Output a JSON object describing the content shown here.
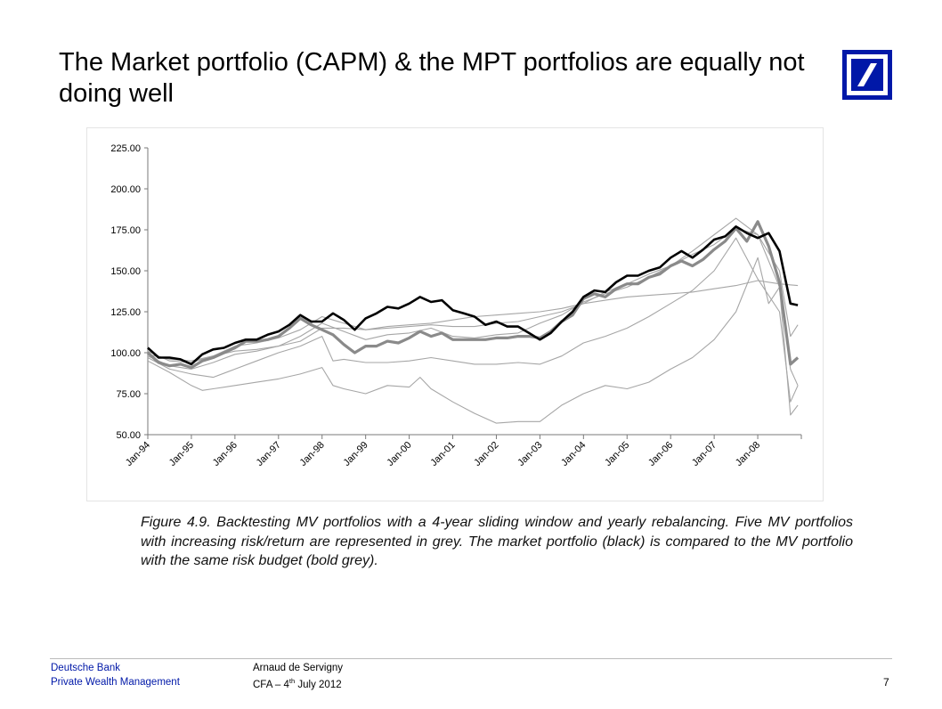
{
  "slide": {
    "title": "The Market portfolio (CAPM) & the MPT portfolios are equally not doing well",
    "caption": "Figure 4.9. Backtesting MV portfolios with a 4-year sliding window and yearly rebalancing. Five MV portfolios with increasing risk/return are represented in grey. The market portfolio (black) is compared to the MV portfolio with the same risk budget (bold grey).",
    "logo_icon": "deutsche-bank-slash-logo",
    "brand_color": "#0018a8"
  },
  "footer": {
    "bank": "Deutsche Bank",
    "division": "Private Wealth Management",
    "author": "Arnaud de Servigny",
    "event_prefix": "CFA – 4",
    "event_sup": "th",
    "event_suffix": " July 2012",
    "page_number": "7"
  },
  "chart_data": {
    "type": "line",
    "title": "",
    "xlabel": "",
    "ylabel": "",
    "ylim": [
      50,
      225
    ],
    "yticks": [
      "50.00",
      "75.00",
      "100.00",
      "125.00",
      "150.00",
      "175.00",
      "200.00",
      "225.00"
    ],
    "x_tick_labels": [
      "Jan-94",
      "Jan-95",
      "Jan-96",
      "Jan-97",
      "Jan-98",
      "Jan-99",
      "Jan-00",
      "Jan-01",
      "Jan-02",
      "Jan-03",
      "Jan-04",
      "Jan-05",
      "Jan-06",
      "Jan-07",
      "Jan-08"
    ],
    "x_range": [
      1994.0,
      2009.0
    ],
    "legend": "none",
    "grid": false,
    "series": [
      {
        "role": "market portfolio",
        "color": "#000000",
        "width": 2.6,
        "x": [
          1994.0,
          1994.25,
          1994.5,
          1994.75,
          1995.0,
          1995.25,
          1995.5,
          1995.75,
          1996.0,
          1996.25,
          1996.5,
          1996.75,
          1997.0,
          1997.25,
          1997.5,
          1997.75,
          1998.0,
          1998.25,
          1998.5,
          1998.75,
          1999.0,
          1999.25,
          1999.5,
          1999.75,
          2000.0,
          2000.25,
          2000.5,
          2000.75,
          2001.0,
          2001.25,
          2001.5,
          2001.75,
          2002.0,
          2002.25,
          2002.5,
          2002.75,
          2003.0,
          2003.25,
          2003.5,
          2003.75,
          2004.0,
          2004.25,
          2004.5,
          2004.75,
          2005.0,
          2005.25,
          2005.5,
          2005.75,
          2006.0,
          2006.25,
          2006.5,
          2006.75,
          2007.0,
          2007.25,
          2007.5,
          2007.75,
          2008.0,
          2008.25,
          2008.5,
          2008.75,
          2008.92
        ],
        "y": [
          103,
          97,
          97,
          96,
          93,
          99,
          102,
          103,
          106,
          108,
          108,
          111,
          113,
          117,
          123,
          119,
          119,
          124,
          120,
          114,
          121,
          124,
          128,
          127,
          130,
          134,
          131,
          132,
          126,
          124,
          122,
          117,
          119,
          116,
          116,
          112,
          108,
          112,
          119,
          125,
          134,
          138,
          137,
          143,
          147,
          147,
          150,
          152,
          158,
          162,
          158,
          163,
          169,
          171,
          177,
          173,
          170,
          173,
          162,
          130,
          129
        ]
      },
      {
        "role": "MV portfolio, same risk budget",
        "color": "#8a8a8a",
        "width": 3.2,
        "x": [
          1994.0,
          1994.25,
          1994.5,
          1994.75,
          1995.0,
          1995.25,
          1995.5,
          1995.75,
          1996.0,
          1996.25,
          1996.5,
          1996.75,
          1997.0,
          1997.25,
          1997.5,
          1997.75,
          1998.0,
          1998.25,
          1998.5,
          1998.75,
          1999.0,
          1999.25,
          1999.5,
          1999.75,
          2000.0,
          2000.25,
          2000.5,
          2000.75,
          2001.0,
          2001.25,
          2001.5,
          2001.75,
          2002.0,
          2002.25,
          2002.5,
          2002.75,
          2003.0,
          2003.25,
          2003.5,
          2003.75,
          2004.0,
          2004.25,
          2004.5,
          2004.75,
          2005.0,
          2005.25,
          2005.5,
          2005.75,
          2006.0,
          2006.25,
          2006.5,
          2006.75,
          2007.0,
          2007.25,
          2007.5,
          2007.75,
          2008.0,
          2008.25,
          2008.5,
          2008.75,
          2008.92
        ],
        "y": [
          100,
          94,
          92,
          93,
          91,
          95,
          97,
          100,
          103,
          107,
          107,
          108,
          110,
          115,
          121,
          117,
          114,
          111,
          105,
          100,
          104,
          104,
          107,
          106,
          109,
          113,
          110,
          112,
          108,
          108,
          108,
          108,
          109,
          109,
          110,
          110,
          109,
          113,
          119,
          123,
          133,
          136,
          134,
          139,
          142,
          142,
          146,
          148,
          153,
          156,
          153,
          157,
          163,
          168,
          176,
          168,
          180,
          165,
          143,
          93,
          97
        ]
      },
      {
        "role": "MV portfolio 1 (lowest risk)",
        "color": "#a6a6a6",
        "width": 1.1,
        "x": [
          1994.0,
          1994.5,
          1995.0,
          1995.5,
          1996.0,
          1996.5,
          1997.0,
          1997.5,
          1998.0,
          1998.5,
          1999.0,
          1999.5,
          2000.0,
          2000.5,
          2001.0,
          2001.5,
          2002.0,
          2002.5,
          2003.0,
          2003.5,
          2004.0,
          2004.5,
          2005.0,
          2005.5,
          2006.0,
          2006.5,
          2007.0,
          2007.5,
          2008.0,
          2008.5,
          2008.92
        ],
        "y": [
          99,
          96,
          95,
          98,
          101,
          102,
          104,
          107,
          115,
          115,
          114,
          116,
          117,
          118,
          120,
          122,
          123,
          124,
          125,
          127,
          130,
          132,
          134,
          135,
          136,
          137,
          139,
          141,
          144,
          142,
          141
        ]
      },
      {
        "role": "MV portfolio 2",
        "color": "#a6a6a6",
        "width": 1.1,
        "x": [
          1994.0,
          1994.5,
          1995.0,
          1995.5,
          1996.0,
          1996.5,
          1997.0,
          1997.5,
          1998.0,
          1998.5,
          1999.0,
          1999.5,
          2000.0,
          2000.5,
          2001.0,
          2001.5,
          2002.0,
          2002.5,
          2003.0,
          2003.5,
          2004.0,
          2004.5,
          2005.0,
          2005.5,
          2006.0,
          2006.5,
          2007.0,
          2007.5,
          2008.0,
          2008.5,
          2008.75,
          2008.92
        ],
        "y": [
          101,
          95,
          94,
          98,
          104,
          106,
          109,
          114,
          122,
          118,
          114,
          115,
          116,
          117,
          116,
          116,
          118,
          119,
          122,
          125,
          130,
          137,
          142,
          148,
          153,
          160,
          166,
          176,
          172,
          150,
          110,
          117
        ]
      },
      {
        "role": "MV portfolio 3",
        "color": "#a6a6a6",
        "width": 1.1,
        "x": [
          1994.0,
          1994.5,
          1995.0,
          1995.5,
          1996.0,
          1996.5,
          1997.0,
          1997.5,
          1998.0,
          1998.5,
          1999.0,
          1999.5,
          2000.0,
          2000.5,
          2001.0,
          2001.5,
          2002.0,
          2002.5,
          2003.0,
          2003.5,
          2004.0,
          2004.5,
          2005.0,
          2005.5,
          2006.0,
          2006.5,
          2007.0,
          2007.5,
          2008.0,
          2008.5,
          2008.75,
          2008.92
        ],
        "y": [
          98,
          92,
          90,
          94,
          99,
          101,
          104,
          110,
          118,
          113,
          108,
          111,
          112,
          115,
          110,
          109,
          111,
          112,
          118,
          123,
          131,
          136,
          140,
          146,
          153,
          162,
          172,
          182,
          172,
          140,
          90,
          80
        ]
      },
      {
        "role": "MV portfolio 4",
        "color": "#a6a6a6",
        "width": 1.1,
        "x": [
          1994.0,
          1994.5,
          1995.0,
          1995.5,
          1996.0,
          1996.5,
          1997.0,
          1997.5,
          1998.0,
          1998.25,
          1998.5,
          1999.0,
          1999.5,
          2000.0,
          2000.5,
          2001.0,
          2001.5,
          2002.0,
          2002.5,
          2003.0,
          2003.5,
          2004.0,
          2004.5,
          2005.0,
          2005.5,
          2006.0,
          2006.5,
          2007.0,
          2007.5,
          2008.0,
          2008.5,
          2008.75,
          2008.92
        ],
        "y": [
          97,
          90,
          87,
          85,
          90,
          95,
          100,
          104,
          110,
          95,
          96,
          94,
          94,
          95,
          97,
          95,
          93,
          93,
          94,
          93,
          98,
          106,
          110,
          115,
          122,
          130,
          138,
          150,
          170,
          145,
          125,
          70,
          80
        ]
      },
      {
        "role": "MV portfolio 5 (highest risk)",
        "color": "#a6a6a6",
        "width": 1.1,
        "x": [
          1994.0,
          1994.5,
          1995.0,
          1995.25,
          1995.5,
          1996.0,
          1996.5,
          1997.0,
          1997.5,
          1998.0,
          1998.25,
          1998.5,
          1999.0,
          1999.5,
          2000.0,
          2000.25,
          2000.5,
          2001.0,
          2001.5,
          2002.0,
          2002.5,
          2003.0,
          2003.5,
          2004.0,
          2004.5,
          2005.0,
          2005.5,
          2006.0,
          2006.5,
          2007.0,
          2007.5,
          2008.0,
          2008.25,
          2008.5,
          2008.75,
          2008.92
        ],
        "y": [
          95,
          88,
          80,
          77,
          78,
          80,
          82,
          84,
          87,
          91,
          80,
          78,
          75,
          80,
          79,
          85,
          78,
          70,
          63,
          57,
          58,
          58,
          68,
          75,
          80,
          78,
          82,
          90,
          97,
          108,
          125,
          158,
          130,
          140,
          62,
          68
        ]
      }
    ]
  }
}
